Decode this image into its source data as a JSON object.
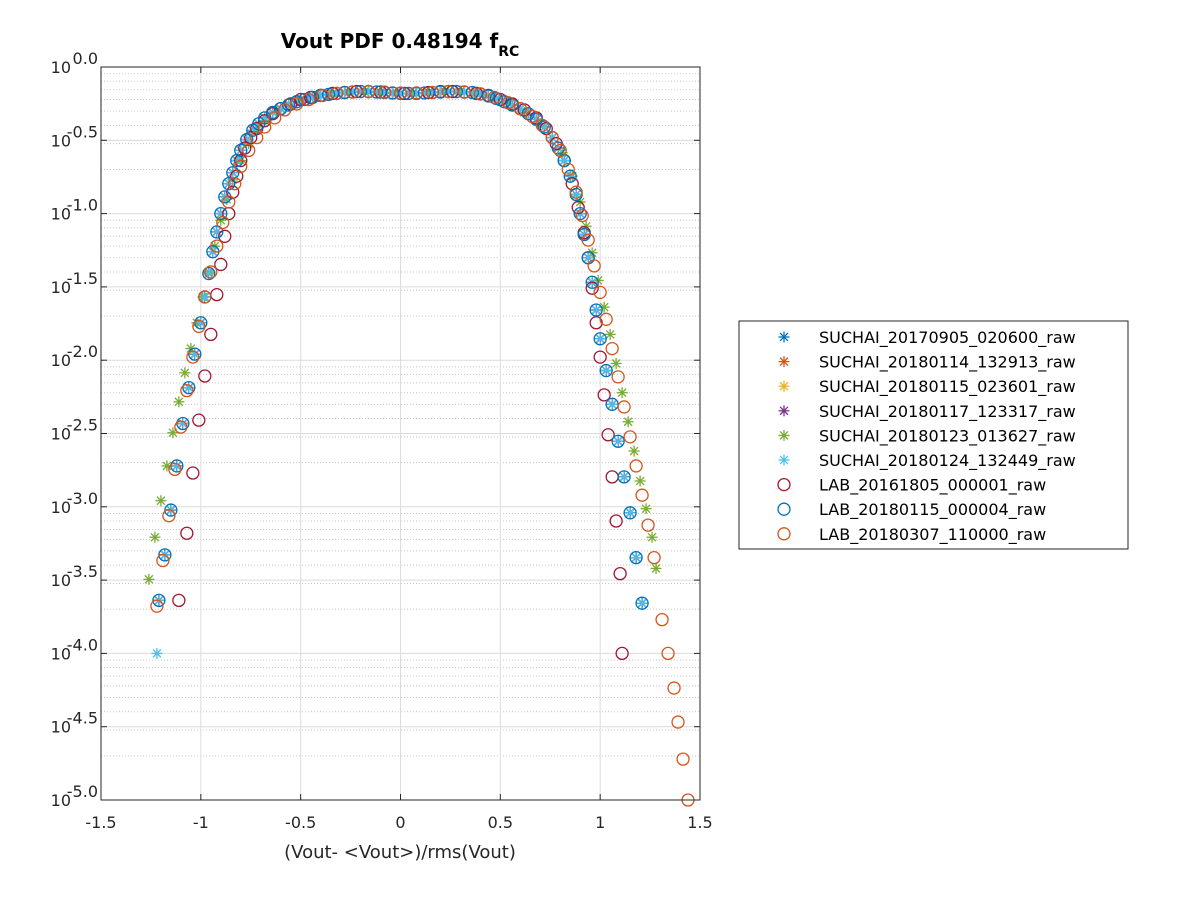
{
  "chart_data": {
    "type": "scatter",
    "title": "Vout PDF 0.48194 f",
    "title_subscript": "RC",
    "xlabel": "(Vout- <Vout>)/rms(Vout)",
    "ylabel": "",
    "xlim": [
      -1.5,
      1.5
    ],
    "ylim": [
      1e-05,
      1
    ],
    "yscale": "log",
    "grid": true,
    "minor_grid": true,
    "legend_position": "right-outside",
    "x_ticks": [
      -1.5,
      -1,
      -0.5,
      0,
      0.5,
      1,
      1.5
    ],
    "x_tick_labels": [
      "-1.5",
      "-1",
      "-0.5",
      "0",
      "0.5",
      "1",
      "1.5"
    ],
    "y_tick_exponents": [
      0,
      -0.5,
      -1,
      -1.5,
      -2,
      -2.5,
      -3,
      -3.5,
      -4,
      -4.5,
      -5
    ],
    "y_tick_mantissa": "10",
    "y_tick_exponent_labels": [
      "0.0",
      "-0.5",
      "-1.0",
      "-1.5",
      "-2.0",
      "-2.5",
      "-3.0",
      "-3.5",
      "-4.0",
      "-4.5",
      "-5.0"
    ],
    "series": [
      {
        "name": "SUCHAI_20170905_020600_raw",
        "marker": "asterisk",
        "color": "#0072BD",
        "profile": "base"
      },
      {
        "name": "SUCHAI_20180114_132913_raw",
        "marker": "asterisk",
        "color": "#D95319",
        "profile": "base"
      },
      {
        "name": "SUCHAI_20180115_023601_raw",
        "marker": "asterisk",
        "color": "#EDB120",
        "profile": "base"
      },
      {
        "name": "SUCHAI_20180117_123317_raw",
        "marker": "asterisk",
        "color": "#7E2F8E",
        "profile": "base"
      },
      {
        "name": "SUCHAI_20180123_013627_raw",
        "marker": "asterisk",
        "color": "#77AC30",
        "profile": "wide"
      },
      {
        "name": "SUCHAI_20180124_132449_raw",
        "marker": "asterisk",
        "color": "#4DBEEE",
        "profile": "base",
        "extra_points": [
          [
            -1.22,
            0.0001
          ]
        ]
      },
      {
        "name": "LAB_20161805_000001_raw",
        "marker": "circle",
        "color": "#A2142F",
        "profile": "narrow"
      },
      {
        "name": "LAB_20180115_000004_raw",
        "marker": "circle",
        "color": "#0072BD",
        "profile": "base"
      },
      {
        "name": "LAB_20180307_110000_raw",
        "marker": "circle",
        "color": "#D95319",
        "profile": "long",
        "extra_points": [
          [
            1.31,
            0.00017
          ],
          [
            1.34,
            0.0001
          ],
          [
            1.37,
            5.8e-05
          ],
          [
            1.39,
            3.4e-05
          ],
          [
            1.415,
            1.9e-05
          ],
          [
            1.44,
            1e-05
          ]
        ]
      }
    ],
    "profiles": {
      "base": [
        [
          -1.21,
          0.00023
        ],
        [
          -1.18,
          0.00047
        ],
        [
          -1.15,
          0.00095
        ],
        [
          -1.12,
          0.0019
        ],
        [
          -1.09,
          0.0037
        ],
        [
          -1.06,
          0.0065
        ],
        [
          -1.03,
          0.011
        ],
        [
          -1.0,
          0.018
        ],
        [
          -0.98,
          0.027
        ],
        [
          -0.96,
          0.039
        ],
        [
          -0.94,
          0.055
        ],
        [
          -0.92,
          0.075
        ],
        [
          -0.9,
          0.1
        ],
        [
          -0.88,
          0.13
        ],
        [
          -0.86,
          0.16
        ],
        [
          -0.84,
          0.19
        ],
        [
          -0.82,
          0.23
        ],
        [
          -0.8,
          0.27
        ],
        [
          -0.77,
          0.32
        ],
        [
          -0.74,
          0.37
        ],
        [
          -0.71,
          0.41
        ],
        [
          -0.68,
          0.45
        ],
        [
          -0.64,
          0.49
        ],
        [
          -0.6,
          0.52
        ],
        [
          -0.56,
          0.55
        ],
        [
          -0.52,
          0.58
        ],
        [
          -0.48,
          0.6
        ],
        [
          -0.44,
          0.62
        ],
        [
          -0.4,
          0.64
        ],
        [
          -0.36,
          0.65
        ],
        [
          -0.32,
          0.66
        ],
        [
          -0.28,
          0.67
        ],
        [
          -0.24,
          0.675
        ],
        [
          -0.2,
          0.68
        ],
        [
          -0.16,
          0.68
        ],
        [
          -0.12,
          0.675
        ],
        [
          -0.08,
          0.67
        ],
        [
          -0.04,
          0.665
        ],
        [
          0.0,
          0.66
        ],
        [
          0.04,
          0.66
        ],
        [
          0.08,
          0.66
        ],
        [
          0.12,
          0.665
        ],
        [
          0.16,
          0.67
        ],
        [
          0.2,
          0.675
        ],
        [
          0.24,
          0.68
        ],
        [
          0.28,
          0.68
        ],
        [
          0.32,
          0.675
        ],
        [
          0.36,
          0.67
        ],
        [
          0.4,
          0.655
        ],
        [
          0.44,
          0.635
        ],
        [
          0.48,
          0.61
        ],
        [
          0.52,
          0.58
        ],
        [
          0.56,
          0.55
        ],
        [
          0.6,
          0.52
        ],
        [
          0.64,
          0.48
        ],
        [
          0.68,
          0.44
        ],
        [
          0.72,
          0.39
        ],
        [
          0.76,
          0.33
        ],
        [
          0.79,
          0.28
        ],
        [
          0.82,
          0.23
        ],
        [
          0.85,
          0.18
        ],
        [
          0.88,
          0.135
        ],
        [
          0.9,
          0.1
        ],
        [
          0.92,
          0.072
        ],
        [
          0.94,
          0.05
        ],
        [
          0.96,
          0.034
        ],
        [
          0.98,
          0.022
        ],
        [
          1.0,
          0.014
        ],
        [
          1.03,
          0.0085
        ],
        [
          1.06,
          0.005
        ],
        [
          1.09,
          0.0028
        ],
        [
          1.12,
          0.0016
        ],
        [
          1.15,
          0.00091
        ],
        [
          1.18,
          0.00045
        ],
        [
          1.21,
          0.00022
        ]
      ],
      "wide": [
        [
          -1.26,
          0.00032
        ],
        [
          -1.23,
          0.00062
        ],
        [
          -1.2,
          0.0011
        ],
        [
          -1.17,
          0.0019
        ],
        [
          -1.14,
          0.0032
        ],
        [
          -1.11,
          0.0052
        ],
        [
          -1.08,
          0.0082
        ],
        [
          -1.05,
          0.012
        ],
        [
          -1.02,
          0.018
        ],
        [
          -0.99,
          0.027
        ],
        [
          -0.96,
          0.04
        ],
        [
          -0.93,
          0.06
        ],
        [
          -0.9,
          0.09
        ],
        [
          -0.87,
          0.125
        ],
        [
          -0.84,
          0.17
        ],
        [
          -0.8,
          0.23
        ],
        [
          -0.76,
          0.3
        ],
        [
          -0.72,
          0.37
        ],
        [
          -0.68,
          0.43
        ],
        [
          -0.62,
          0.5
        ],
        [
          -0.56,
          0.56
        ],
        [
          -0.5,
          0.6
        ],
        [
          -0.42,
          0.64
        ],
        [
          -0.34,
          0.66
        ],
        [
          -0.26,
          0.675
        ],
        [
          -0.18,
          0.68
        ],
        [
          -0.1,
          0.675
        ],
        [
          -0.02,
          0.665
        ],
        [
          0.06,
          0.665
        ],
        [
          0.14,
          0.675
        ],
        [
          0.22,
          0.685
        ],
        [
          0.3,
          0.685
        ],
        [
          0.38,
          0.665
        ],
        [
          0.46,
          0.62
        ],
        [
          0.54,
          0.56
        ],
        [
          0.62,
          0.49
        ],
        [
          0.7,
          0.41
        ],
        [
          0.76,
          0.33
        ],
        [
          0.81,
          0.26
        ],
        [
          0.86,
          0.18
        ],
        [
          0.9,
          0.12
        ],
        [
          0.93,
          0.082
        ],
        [
          0.96,
          0.054
        ],
        [
          0.99,
          0.035
        ],
        [
          1.02,
          0.023
        ],
        [
          1.05,
          0.015
        ],
        [
          1.08,
          0.0095
        ],
        [
          1.11,
          0.006
        ],
        [
          1.14,
          0.0038
        ],
        [
          1.17,
          0.0024
        ],
        [
          1.2,
          0.0015
        ],
        [
          1.23,
          0.00097
        ],
        [
          1.26,
          0.00062
        ],
        [
          1.28,
          0.00038
        ]
      ],
      "narrow": [
        [
          -1.11,
          0.00023
        ],
        [
          -1.07,
          0.00066
        ],
        [
          -1.04,
          0.0017
        ],
        [
          -1.01,
          0.0039
        ],
        [
          -0.98,
          0.0078
        ],
        [
          -0.95,
          0.015
        ],
        [
          -0.92,
          0.028
        ],
        [
          -0.9,
          0.045
        ],
        [
          -0.88,
          0.07
        ],
        [
          -0.86,
          0.1
        ],
        [
          -0.84,
          0.14
        ],
        [
          -0.82,
          0.18
        ],
        [
          -0.8,
          0.23
        ],
        [
          -0.78,
          0.28
        ],
        [
          -0.75,
          0.33
        ],
        [
          -0.72,
          0.38
        ],
        [
          -0.68,
          0.43
        ],
        [
          -0.64,
          0.48
        ],
        [
          -0.6,
          0.52
        ],
        [
          -0.55,
          0.56
        ],
        [
          -0.5,
          0.6
        ],
        [
          -0.45,
          0.62
        ],
        [
          -0.4,
          0.64
        ],
        [
          -0.34,
          0.66
        ],
        [
          -0.28,
          0.67
        ],
        [
          -0.22,
          0.68
        ],
        [
          -0.16,
          0.68
        ],
        [
          -0.1,
          0.675
        ],
        [
          -0.04,
          0.665
        ],
        [
          0.02,
          0.66
        ],
        [
          0.08,
          0.665
        ],
        [
          0.14,
          0.67
        ],
        [
          0.2,
          0.68
        ],
        [
          0.26,
          0.68
        ],
        [
          0.32,
          0.675
        ],
        [
          0.38,
          0.66
        ],
        [
          0.44,
          0.64
        ],
        [
          0.5,
          0.6
        ],
        [
          0.56,
          0.56
        ],
        [
          0.62,
          0.51
        ],
        [
          0.68,
          0.45
        ],
        [
          0.73,
          0.38
        ],
        [
          0.78,
          0.3
        ],
        [
          0.82,
          0.23
        ],
        [
          0.86,
          0.16
        ],
        [
          0.89,
          0.11
        ],
        [
          0.92,
          0.074
        ],
        [
          0.94,
          0.05
        ],
        [
          0.96,
          0.031
        ],
        [
          0.98,
          0.018
        ],
        [
          1.0,
          0.0105
        ],
        [
          1.02,
          0.0058
        ],
        [
          1.04,
          0.0031
        ],
        [
          1.06,
          0.0016
        ],
        [
          1.08,
          0.0008
        ],
        [
          1.1,
          0.00035
        ],
        [
          1.11,
          0.0001
        ]
      ],
      "long": [
        [
          -1.22,
          0.00021
        ],
        [
          -1.19,
          0.00043
        ],
        [
          -1.16,
          0.00087
        ],
        [
          -1.13,
          0.0018
        ],
        [
          -1.1,
          0.0035
        ],
        [
          -1.07,
          0.0062
        ],
        [
          -1.04,
          0.0105
        ],
        [
          -1.01,
          0.017
        ],
        [
          -0.98,
          0.027
        ],
        [
          -0.95,
          0.04
        ],
        [
          -0.92,
          0.06
        ],
        [
          -0.89,
          0.087
        ],
        [
          -0.86,
          0.12
        ],
        [
          -0.83,
          0.16
        ],
        [
          -0.8,
          0.21
        ],
        [
          -0.76,
          0.27
        ],
        [
          -0.72,
          0.33
        ],
        [
          -0.68,
          0.39
        ],
        [
          -0.63,
          0.45
        ],
        [
          -0.58,
          0.51
        ],
        [
          -0.52,
          0.56
        ],
        [
          -0.46,
          0.6
        ],
        [
          -0.39,
          0.64
        ],
        [
          -0.32,
          0.66
        ],
        [
          -0.24,
          0.675
        ],
        [
          -0.16,
          0.68
        ],
        [
          -0.08,
          0.675
        ],
        [
          0.0,
          0.665
        ],
        [
          0.08,
          0.665
        ],
        [
          0.16,
          0.67
        ],
        [
          0.24,
          0.68
        ],
        [
          0.32,
          0.675
        ],
        [
          0.4,
          0.655
        ],
        [
          0.47,
          0.62
        ],
        [
          0.54,
          0.57
        ],
        [
          0.6,
          0.52
        ],
        [
          0.66,
          0.46
        ],
        [
          0.71,
          0.4
        ],
        [
          0.76,
          0.33
        ],
        [
          0.8,
          0.27
        ],
        [
          0.84,
          0.2
        ],
        [
          0.88,
          0.14
        ],
        [
          0.91,
          0.097
        ],
        [
          0.94,
          0.066
        ],
        [
          0.97,
          0.044
        ],
        [
          1.0,
          0.029
        ],
        [
          1.03,
          0.019
        ],
        [
          1.06,
          0.012
        ],
        [
          1.09,
          0.0077
        ],
        [
          1.12,
          0.0048
        ],
        [
          1.15,
          0.003
        ],
        [
          1.18,
          0.0019
        ],
        [
          1.21,
          0.0012
        ],
        [
          1.24,
          0.00075
        ],
        [
          1.27,
          0.00045
        ]
      ]
    }
  }
}
